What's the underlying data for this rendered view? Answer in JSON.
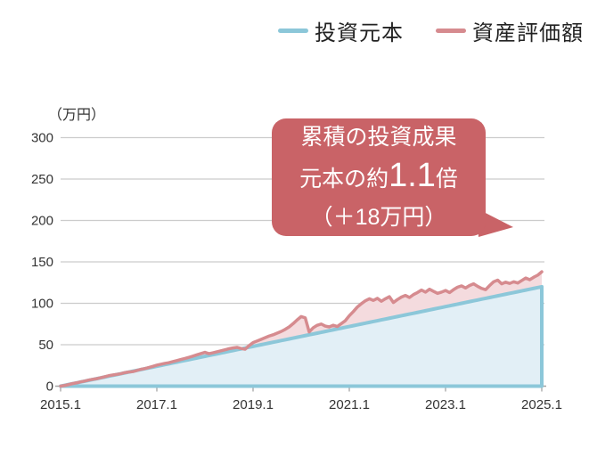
{
  "legend": {
    "items": [
      {
        "label": "投資元本",
        "color": "#8cc7d9"
      },
      {
        "label": "資産評価額",
        "color": "#d68b8f"
      }
    ]
  },
  "axis": {
    "unit_label": "（万円）",
    "grid_color": "#cccccc",
    "axis_color": "#a3a3a3",
    "text_color": "#333333"
  },
  "callout": {
    "line1": "累積の投資成果",
    "line2_prefix": "元本の約",
    "line2_value": "1.1",
    "line2_suffix": "倍",
    "line3": "（＋18万円）",
    "bg": "#c96367",
    "text_color": "#ffffff"
  },
  "chart_data": {
    "type": "area",
    "title": "",
    "xlabel": "",
    "ylabel": "万円",
    "x_unit": "year.month, monthly points",
    "x_tick_labels": [
      "2015.1",
      "2017.1",
      "2019.1",
      "2021.1",
      "2023.1",
      "2025.1"
    ],
    "y_ticks": [
      0,
      50,
      100,
      150,
      200,
      250,
      300
    ],
    "ylim": [
      0,
      300
    ],
    "grid": true,
    "legend_position": "top-right",
    "series": [
      {
        "name": "投資元本",
        "color": "#8cc7d9",
        "fill": "#e2eff6",
        "values": [
          0,
          1,
          2,
          3,
          4,
          5,
          6,
          7,
          8,
          9,
          10,
          11,
          12,
          13,
          14,
          15,
          16,
          17,
          18,
          19,
          20,
          21,
          22,
          23,
          24,
          25,
          26,
          27,
          28,
          29,
          30,
          31,
          32,
          33,
          34,
          35,
          36,
          37,
          38,
          39,
          40,
          41,
          42,
          43,
          44,
          45,
          46,
          47,
          48,
          49,
          50,
          51,
          52,
          53,
          54,
          55,
          56,
          57,
          58,
          59,
          60,
          61,
          62,
          63,
          64,
          65,
          66,
          67,
          68,
          69,
          70,
          71,
          72,
          73,
          74,
          75,
          76,
          77,
          78,
          79,
          80,
          81,
          82,
          83,
          84,
          85,
          86,
          87,
          88,
          89,
          90,
          91,
          92,
          93,
          94,
          95,
          96,
          97,
          98,
          99,
          100,
          101,
          102,
          103,
          104,
          105,
          106,
          107,
          108,
          109,
          110,
          111,
          112,
          113,
          114,
          115,
          116,
          117,
          118,
          119,
          120
        ]
      },
      {
        "name": "資産評価額",
        "color": "#d68b8f",
        "fill": "#f4dbde",
        "values": [
          0,
          0.8,
          1.9,
          3.1,
          4.0,
          5.2,
          6.1,
          7.3,
          8.2,
          9.0,
          10.2,
          11.3,
          12.6,
          13.4,
          14.2,
          15.0,
          16.3,
          17.1,
          17.6,
          18.9,
          20.3,
          21.2,
          22.5,
          23.9,
          25.3,
          26.4,
          27.5,
          28.3,
          29.6,
          30.9,
          32.2,
          33.4,
          34.8,
          36.2,
          37.8,
          39.3,
          40.8,
          39.2,
          40.3,
          41.5,
          42.7,
          43.9,
          45.2,
          46.1,
          46.8,
          45.5,
          44.6,
          48.9,
          52.5,
          54.5,
          56.5,
          58.5,
          60.5,
          62.0,
          64.0,
          66.0,
          68.5,
          71.5,
          75.5,
          80.0,
          84.0,
          82.5,
          65.5,
          70.5,
          73.5,
          75.0,
          72.5,
          71.5,
          73.5,
          72.0,
          75.5,
          79.0,
          85.0,
          90.0,
          95.5,
          99.5,
          103.0,
          105.5,
          103.5,
          106.0,
          102.5,
          105.5,
          108.0,
          101.0,
          104.5,
          107.5,
          109.5,
          107.0,
          110.5,
          113.0,
          116.0,
          113.5,
          117.0,
          114.5,
          112.0,
          113.5,
          115.5,
          113.0,
          116.5,
          119.5,
          121.0,
          118.5,
          121.5,
          123.5,
          120.5,
          118.0,
          116.5,
          121.5,
          126.0,
          128.0,
          123.5,
          125.5,
          124.0,
          126.0,
          124.5,
          127.5,
          130.5,
          128.5,
          131.5,
          134.0,
          138.0
        ]
      }
    ],
    "summary": {
      "principal_final": 120,
      "valuation_final": 138,
      "gain": 18,
      "multiple": 1.1
    }
  }
}
